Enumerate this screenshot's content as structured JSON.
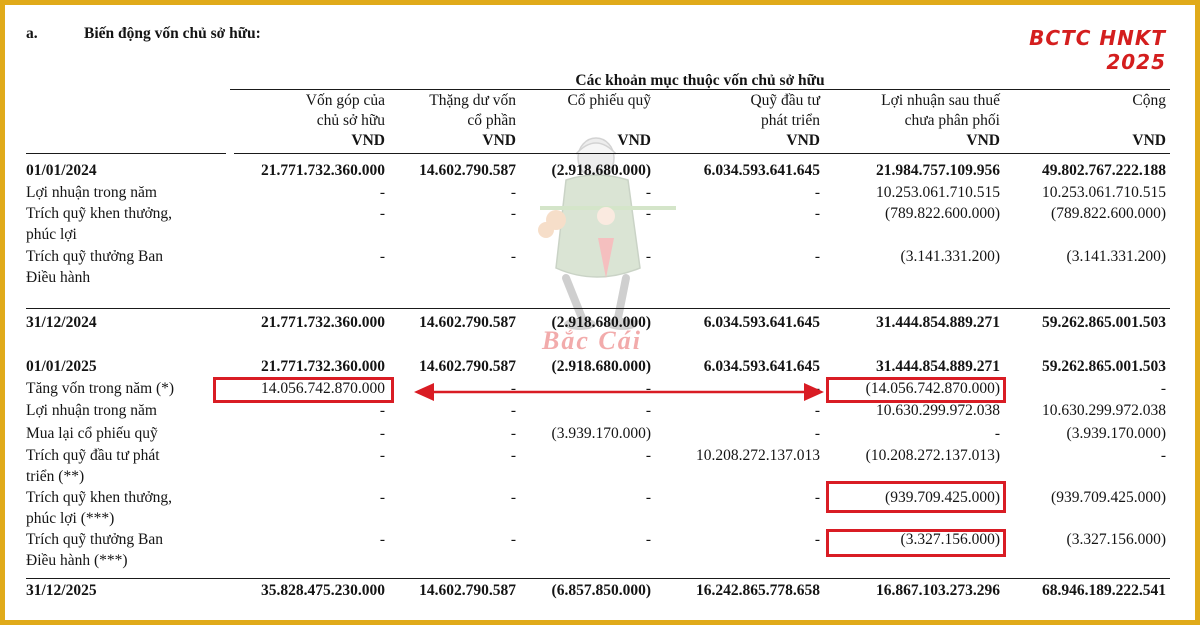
{
  "watermark_tag": "BCTC HNKT 2025",
  "section": {
    "index": "a.",
    "title": "Biến động vốn chủ sở hữu:"
  },
  "group_header": "Các khoản mục thuộc vốn chủ sở hữu",
  "watermark_brand": "Bắc Cái",
  "columns": [
    {
      "lines": [
        "Vốn góp của",
        "chủ sở hữu"
      ],
      "unit": "VND"
    },
    {
      "lines": [
        "Thặng dư vốn",
        "cổ phần"
      ],
      "unit": "VND"
    },
    {
      "lines": [
        "Cổ phiếu quỹ"
      ],
      "unit": "VND"
    },
    {
      "lines": [
        "Quỹ đầu tư",
        "phát triển"
      ],
      "unit": "VND"
    },
    {
      "lines": [
        "Lợi nhuận sau thuế",
        "chưa phân phối"
      ],
      "unit": "VND"
    },
    {
      "lines": [
        "Cộng"
      ],
      "unit": "VND"
    }
  ],
  "rows": [
    {
      "label": [
        "01/01/2024"
      ],
      "bold": true,
      "values": [
        "21.771.732.360.000",
        "14.602.790.587",
        "(2.918.680.000)",
        "6.034.593.641.645",
        "21.984.757.109.956",
        "49.802.767.222.188"
      ]
    },
    {
      "label": [
        "Lợi nhuận trong năm"
      ],
      "values": [
        "-",
        "-",
        "-",
        "-",
        "10.253.061.710.515",
        "10.253.061.710.515"
      ]
    },
    {
      "label": [
        "Trích quỹ khen thưởng,",
        "phúc lợi"
      ],
      "values": [
        "-",
        "-",
        "-",
        "-",
        "(789.822.600.000)",
        "(789.822.600.000)"
      ]
    },
    {
      "label": [
        "Trích quỹ thưởng Ban",
        "Điều hành"
      ],
      "values": [
        "-",
        "-",
        "-",
        "-",
        "(3.141.331.200)",
        "(3.141.331.200)"
      ]
    },
    {
      "label": [
        "31/12/2024"
      ],
      "bold": true,
      "values": [
        "21.771.732.360.000",
        "14.602.790.587",
        "(2.918.680.000)",
        "6.034.593.641.645",
        "31.444.854.889.271",
        "59.262.865.001.503"
      ]
    },
    {
      "label": [
        "01/01/2025"
      ],
      "bold": true,
      "values": [
        "21.771.732.360.000",
        "14.602.790.587",
        "(2.918.680.000)",
        "6.034.593.641.645",
        "31.444.854.889.271",
        "59.262.865.001.503"
      ]
    },
    {
      "label": [
        "Tăng vốn trong năm (*)"
      ],
      "values": [
        "14.056.742.870.000",
        "-",
        "-",
        "-",
        "(14.056.742.870.000)",
        "-"
      ]
    },
    {
      "label": [
        "Lợi nhuận trong năm"
      ],
      "values": [
        "-",
        "-",
        "-",
        "-",
        "10.630.299.972.038",
        "10.630.299.972.038"
      ]
    },
    {
      "label": [
        "Mua lại cổ phiếu quỹ"
      ],
      "values": [
        "-",
        "-",
        "(3.939.170.000)",
        "-",
        "-",
        "(3.939.170.000)"
      ]
    },
    {
      "label": [
        "Trích quỹ đầu tư phát",
        "triển (**)"
      ],
      "values": [
        "-",
        "-",
        "-",
        "10.208.272.137.013",
        "(10.208.272.137.013)",
        "-"
      ]
    },
    {
      "label": [
        "Trích quỹ khen thưởng,",
        "phúc lợi (***)"
      ],
      "values": [
        "-",
        "-",
        "-",
        "-",
        "(939.709.425.000)",
        "(939.709.425.000)"
      ]
    },
    {
      "label": [
        "Trích quỹ thưởng Ban",
        "Điều hành (***)"
      ],
      "values": [
        "-",
        "-",
        "-",
        "-",
        "(3.327.156.000)",
        "(3.327.156.000)"
      ]
    },
    {
      "label": [
        "31/12/2025"
      ],
      "bold": true,
      "values": [
        "35.828.475.230.000",
        "14.602.790.587",
        "(6.857.850.000)",
        "16.242.865.778.658",
        "16.867.103.273.296",
        "68.946.189.222.541"
      ]
    }
  ],
  "colors": {
    "frame": "#e0aa1a",
    "highlight": "#d91c24",
    "tag": "#d41e1e"
  }
}
